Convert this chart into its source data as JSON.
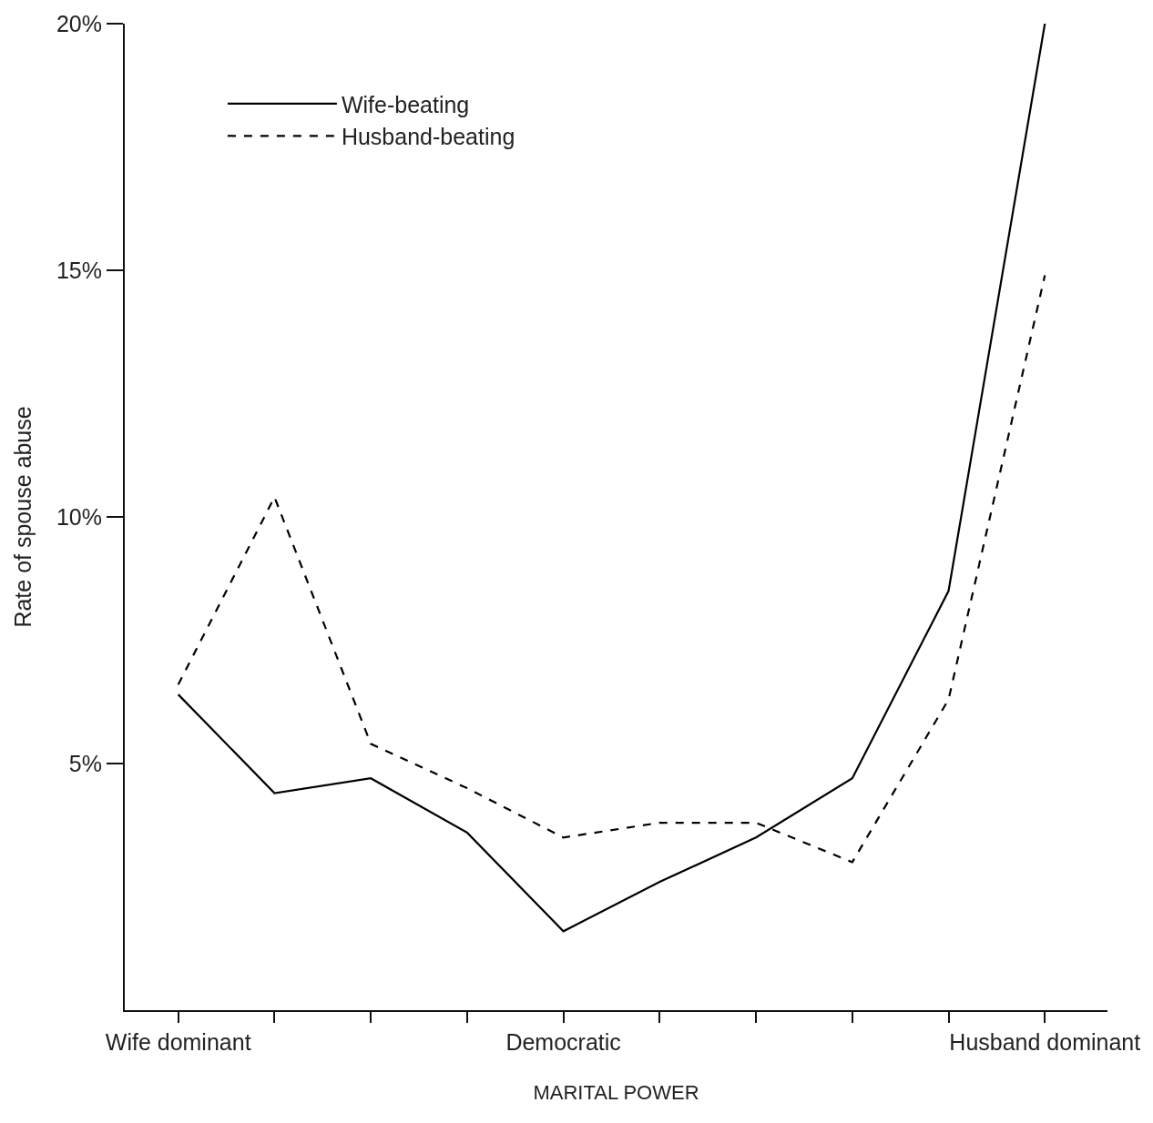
{
  "chart_data": {
    "type": "line",
    "xlabel": "MARITAL POWER",
    "ylabel": "Rate of spouse abuse",
    "categories": [
      "Wife dominant",
      null,
      null,
      null,
      "Democratic",
      null,
      null,
      null,
      null,
      "Husband dominant"
    ],
    "ylim": [
      0,
      20
    ],
    "yticks": [
      {
        "value": 5,
        "label": "5%"
      },
      {
        "value": 10,
        "label": "10%"
      },
      {
        "value": 15,
        "label": "15%"
      },
      {
        "value": 20,
        "label": "20%"
      }
    ],
    "series": [
      {
        "name": "Wife-beating",
        "color": "#000000",
        "line_style": "solid",
        "values": [
          6.4,
          4.4,
          4.7,
          3.6,
          1.6,
          2.6,
          3.5,
          4.7,
          8.5,
          20
        ]
      },
      {
        "name": "Husband-beating",
        "color": "#000000",
        "line_style": "dashed",
        "values": [
          6.6,
          10.4,
          5.4,
          4.5,
          3.5,
          3.8,
          3.8,
          3.0,
          6.3,
          14.9
        ]
      }
    ],
    "grid": false,
    "legend": "top left",
    "marker": "none"
  }
}
